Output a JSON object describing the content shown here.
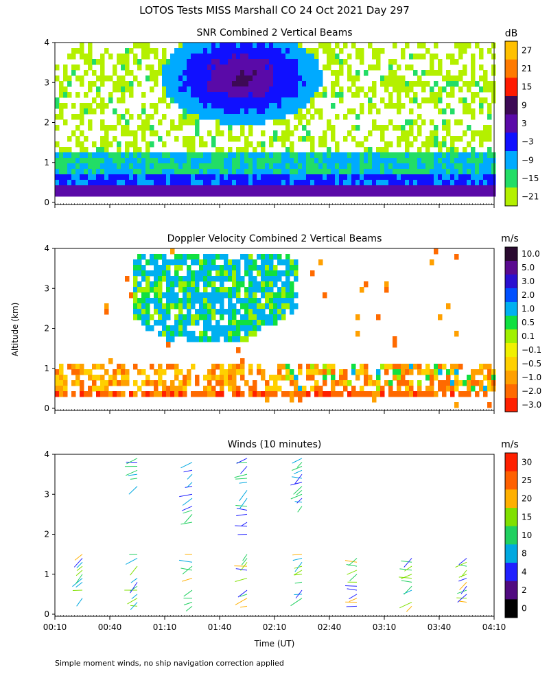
{
  "figure": {
    "title": "LOTOS Tests MISS Marshall CO  24 Oct 2021 Day 297",
    "ylabel": "Altitude (km)",
    "xlabel": "Time (UT)",
    "footnote": "Simple moment winds, no ship navigation correction applied"
  },
  "chart_data": [
    {
      "type": "heatmap",
      "title": "SNR Combined 2 Vertical Beams",
      "x_ticks": [
        "00:10",
        "00:40",
        "01:10",
        "01:40",
        "02:10",
        "02:40",
        "03:10",
        "03:40",
        "04:10"
      ],
      "xlim": [
        "00:10",
        "04:10"
      ],
      "ylim": [
        0,
        4
      ],
      "y_ticks": [
        0,
        1,
        2,
        3,
        4
      ],
      "colorbar": {
        "unit": "dB",
        "labels": [
          "27",
          "21",
          "15",
          "9",
          "3",
          "−3",
          "−9",
          "−15",
          "−21"
        ],
        "colors": [
          "#ffc000",
          "#ff7a00",
          "#ff1a00",
          "#3d0a55",
          "#5a0aa8",
          "#1010ff",
          "#00aaff",
          "#22dd66",
          "#b4f000"
        ]
      }
    },
    {
      "type": "heatmap",
      "title": "Doppler Velocity Combined 2 Vertical Beams",
      "x_ticks": [
        "00:10",
        "00:40",
        "01:10",
        "01:40",
        "02:10",
        "02:40",
        "03:10",
        "03:40",
        "04:10"
      ],
      "xlim": [
        "00:10",
        "04:10"
      ],
      "ylim": [
        0,
        4
      ],
      "y_ticks": [
        0,
        1,
        2,
        3,
        4
      ],
      "colorbar": {
        "unit": "m/s",
        "labels": [
          "10.0",
          "5.0",
          "3.0",
          "2.0",
          "1.0",
          "0.5",
          "0.1",
          "−0.1",
          "−0.5",
          "−1.0",
          "−2.0",
          "−3.0"
        ],
        "colors": [
          "#2a0a30",
          "#5a0a90",
          "#2a10d0",
          "#0050ff",
          "#00b0f0",
          "#10e040",
          "#a0f000",
          "#f0f000",
          "#ffd000",
          "#ffa000",
          "#ff6a00",
          "#ff2000"
        ]
      }
    },
    {
      "type": "scatter",
      "title": "Winds (10 minutes)",
      "x_ticks": [
        "00:10",
        "00:40",
        "01:10",
        "01:40",
        "02:10",
        "02:40",
        "03:10",
        "03:40",
        "04:10"
      ],
      "xlim": [
        "00:10",
        "04:10"
      ],
      "ylim": [
        0,
        4
      ],
      "y_ticks": [
        0,
        1,
        2,
        3,
        4
      ],
      "barb_times": [
        "00:25",
        "00:55",
        "01:25",
        "01:55",
        "02:25",
        "02:55",
        "03:25",
        "03:55"
      ],
      "colorbar": {
        "unit": "m/s",
        "labels": [
          "30",
          "25",
          "20",
          "15",
          "10",
          "8",
          "4",
          "2",
          "0"
        ],
        "colors": [
          "#ff2000",
          "#ff6000",
          "#ffb000",
          "#80e000",
          "#20d060",
          "#00a8e0",
          "#2020ff",
          "#500a80",
          "#000000"
        ]
      }
    }
  ]
}
